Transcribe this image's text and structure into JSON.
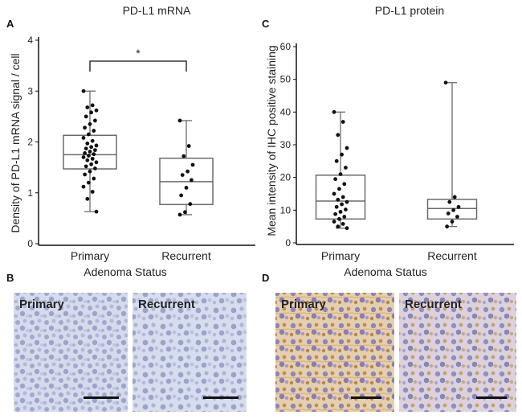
{
  "panels": {
    "A": "A",
    "B": "B",
    "C": "C",
    "D": "D"
  },
  "chart_data": [
    {
      "type": "box",
      "panel": "A",
      "title": "PD-L1 mRNA",
      "ylabel": "Density of PD-L1 mRNA signal / cell",
      "xlabel": "Adenoma Status",
      "categories": [
        "Primary",
        "Recurrent"
      ],
      "ylim": [
        0,
        4
      ],
      "yticks": [
        0,
        1,
        2,
        3,
        4
      ],
      "significance": "*",
      "boxes": [
        {
          "name": "Primary",
          "min": 0.63,
          "q1": 1.47,
          "median": 1.75,
          "q3": 2.13,
          "max": 3.0,
          "points": [
            3.0,
            2.72,
            2.68,
            2.62,
            2.58,
            2.5,
            2.42,
            2.35,
            2.28,
            2.22,
            2.15,
            2.08,
            2.02,
            1.97,
            1.93,
            1.9,
            1.87,
            1.84,
            1.81,
            1.78,
            1.76,
            1.73,
            1.7,
            1.67,
            1.64,
            1.6,
            1.56,
            1.52,
            1.48,
            1.42,
            1.36,
            1.28,
            1.2,
            1.12,
            1.02,
            0.88,
            0.63
          ]
        },
        {
          "name": "Recurrent",
          "min": 0.57,
          "q1": 0.77,
          "median": 1.22,
          "q3": 1.68,
          "max": 2.42,
          "points": [
            2.42,
            1.92,
            1.72,
            1.55,
            1.42,
            1.35,
            1.25,
            1.1,
            0.95,
            0.78,
            0.62,
            0.57
          ]
        }
      ]
    },
    {
      "type": "box",
      "panel": "C",
      "title": "PD-L1 protein",
      "ylabel": "Mean intensity of IHC positive staining",
      "xlabel": "Adenoma Status",
      "categories": [
        "Primary",
        "Recurrent"
      ],
      "ylim": [
        0,
        60
      ],
      "yticks": [
        0,
        10,
        20,
        30,
        40,
        50,
        60
      ],
      "boxes": [
        {
          "name": "Primary",
          "min": 4.5,
          "q1": 7.3,
          "median": 12.8,
          "q3": 20.7,
          "max": 40.0,
          "points": [
            40.0,
            37.0,
            33.0,
            29.0,
            27.0,
            25.0,
            23.0,
            21.0,
            19.5,
            18.0,
            16.5,
            15.0,
            14.0,
            13.2,
            12.5,
            11.8,
            11.0,
            10.2,
            9.5,
            8.8,
            8.0,
            7.3,
            6.5,
            5.8,
            5.0,
            4.5
          ]
        },
        {
          "name": "Recurrent",
          "min": 5.0,
          "q1": 7.3,
          "median": 10.5,
          "q3": 13.3,
          "max": 49.0,
          "points": [
            49.0,
            14.0,
            12.5,
            11.0,
            10.0,
            9.0,
            8.0,
            6.5,
            5.0
          ]
        }
      ]
    }
  ],
  "micrographs": [
    {
      "panel": "B",
      "label": "Primary",
      "stain": "mRNA ISH",
      "tone": "#c9cfe6"
    },
    {
      "panel": "B",
      "label": "Recurrent",
      "stain": "mRNA ISH",
      "tone": "#c9cfe6"
    },
    {
      "panel": "D",
      "label": "Primary",
      "stain": "IHC",
      "tone": "#e4c8a4"
    },
    {
      "panel": "D",
      "label": "Recurrent",
      "stain": "IHC",
      "tone": "#d8cfdc"
    }
  ]
}
